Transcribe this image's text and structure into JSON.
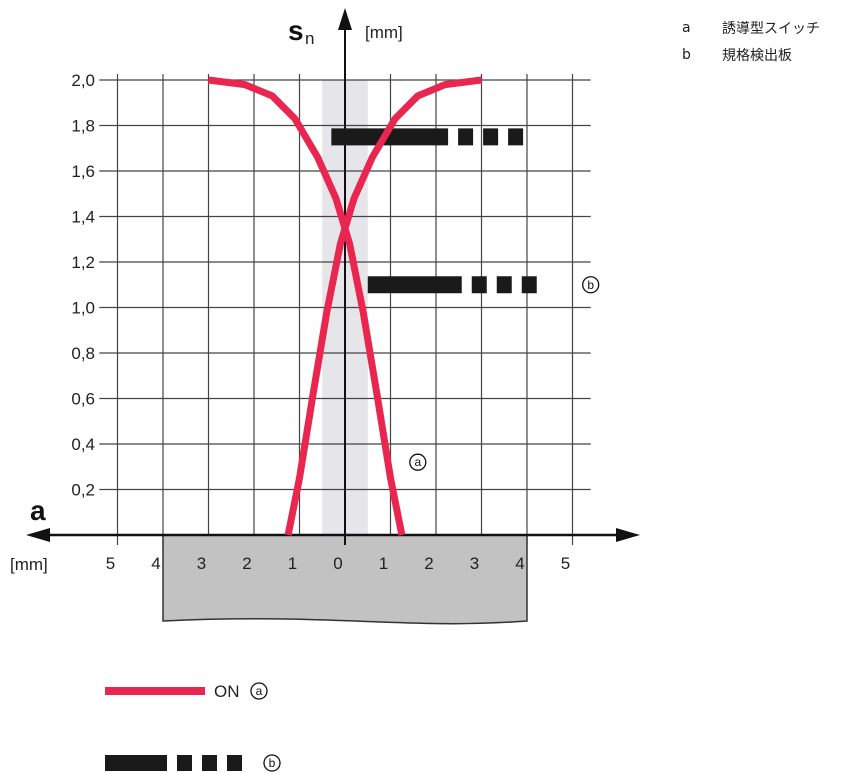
{
  "side_legend": [
    {
      "key": "a",
      "text": "誘導型スイッチ"
    },
    {
      "key": "b",
      "text": "規格検出板"
    }
  ],
  "chart_data": {
    "type": "line",
    "y_axis": {
      "symbol": "s",
      "subscript": "n",
      "unit": "[mm]",
      "range": [
        0,
        2.0
      ],
      "step": 0.2,
      "tick_labels": [
        "0,2",
        "0,4",
        "0,6",
        "0,8",
        "1,0",
        "1,2",
        "1,4",
        "1,6",
        "1,8",
        "2,0"
      ]
    },
    "x_axis": {
      "symbol": "a",
      "unit": "[mm]",
      "range": [
        -5.5,
        5.5
      ],
      "tick_labels": [
        "5",
        "4",
        "3",
        "2",
        "1",
        "0",
        "1",
        "2",
        "3",
        "4",
        "5"
      ]
    },
    "series": [
      {
        "name": "",
        "marker": "a",
        "color": "#e8264f",
        "x": [
          -3.0,
          -2.2,
          -1.6,
          -1.1,
          -0.6,
          -0.2,
          0.1,
          0.4,
          0.7,
          1.0,
          1.25
        ],
        "y": [
          2.0,
          1.98,
          1.93,
          1.83,
          1.66,
          1.48,
          1.28,
          0.98,
          0.62,
          0.25,
          0.0
        ]
      },
      {
        "name": "",
        "marker": "a",
        "color": "#e8264f",
        "x": [
          3.0,
          2.2,
          1.6,
          1.1,
          0.6,
          0.2,
          -0.1,
          -0.4,
          -0.7,
          -1.0,
          -1.25
        ],
        "y": [
          2.0,
          1.98,
          1.93,
          1.83,
          1.66,
          1.48,
          1.28,
          0.98,
          0.62,
          0.25,
          0.0
        ]
      }
    ],
    "shaded_band": {
      "x": [
        -0.5,
        0.5
      ],
      "color": "#e5e5ea"
    },
    "target_plate": {
      "x": [
        -4,
        4
      ],
      "color": "#c2c2c2"
    },
    "dashed_bars": [
      {
        "y": 1.75,
        "x_start": -0.3,
        "x_end": 4.2
      },
      {
        "y": 1.1,
        "x_start": 0.5,
        "x_end": 4.5,
        "marker": "b"
      }
    ],
    "annotation_labels": [
      {
        "text": "a",
        "x": 1.6,
        "y": 0.32
      },
      {
        "text": "b",
        "x": 5.4,
        "y": 1.1
      }
    ],
    "bottom_legend": [
      {
        "style": "line",
        "color": "#e8264f",
        "text": "ON",
        "marker": "a"
      },
      {
        "style": "dashed",
        "color": "#1a1a1a",
        "text": "",
        "marker": "b"
      }
    ],
    "grid": true
  }
}
